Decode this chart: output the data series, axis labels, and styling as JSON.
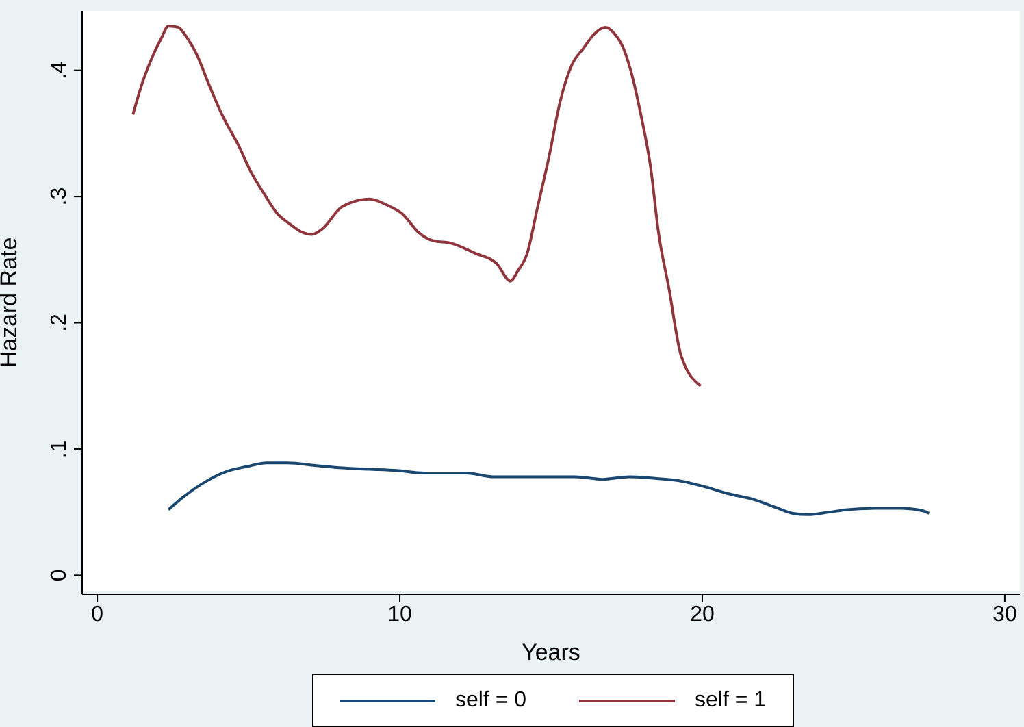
{
  "chart_data": {
    "type": "line",
    "xlabel": "Years",
    "ylabel": "Hazard Rate",
    "xlim": [
      -0.5,
      30.5
    ],
    "ylim": [
      -0.015,
      0.447
    ],
    "xticks": [
      0,
      10,
      20,
      30
    ],
    "yticks": [
      {
        "value": 0,
        "label": "0"
      },
      {
        "value": 0.1,
        "label": ".1"
      },
      {
        "value": 0.2,
        "label": ".2"
      },
      {
        "value": 0.3,
        "label": ".3"
      },
      {
        "value": 0.4,
        "label": ".4"
      }
    ],
    "grid": false,
    "legend": "bottom",
    "marker": "none",
    "line_style": "solid",
    "series": [
      {
        "name": "self = 0",
        "color": "#1a476f",
        "x": [
          2.35,
          2.9,
          3.57,
          4.25,
          4.93,
          5.6,
          6.3,
          7.2,
          8.1,
          9.0,
          9.9,
          10.8,
          12.2,
          13.1,
          14.0,
          14.9,
          15.8,
          16.7,
          17.6,
          18.3,
          19.2,
          20.1,
          20.8,
          21.7,
          22.4,
          23.0,
          23.5,
          24.2,
          24.8,
          25.7,
          26.6,
          27.3,
          27.5
        ],
        "values": [
          0.052,
          0.063,
          0.074,
          0.082,
          0.086,
          0.089,
          0.089,
          0.087,
          0.085,
          0.084,
          0.083,
          0.081,
          0.081,
          0.078,
          0.078,
          0.078,
          0.078,
          0.076,
          0.078,
          0.077,
          0.075,
          0.07,
          0.065,
          0.06,
          0.054,
          0.049,
          0.048,
          0.05,
          0.052,
          0.053,
          0.053,
          0.051,
          0.049
        ]
      },
      {
        "name": "self = 1",
        "color": "#90353b",
        "x": [
          1.18,
          1.49,
          1.81,
          2.13,
          2.35,
          2.67,
          2.99,
          3.3,
          3.67,
          4.12,
          4.7,
          5.07,
          5.52,
          5.97,
          6.38,
          6.74,
          7.1,
          7.42,
          8.1,
          9.0,
          9.6,
          10.1,
          10.6,
          11.1,
          11.7,
          12.5,
          13.2,
          13.66,
          13.9,
          14.2,
          14.56,
          14.93,
          15.3,
          15.7,
          16.06,
          16.4,
          16.8,
          17.06,
          17.4,
          17.7,
          17.96,
          18.3,
          18.55,
          18.9,
          19.3,
          19.95
        ],
        "values": [
          0.365,
          0.39,
          0.41,
          0.426,
          0.435,
          0.434,
          0.425,
          0.412,
          0.39,
          0.365,
          0.339,
          0.32,
          0.302,
          0.286,
          0.278,
          0.272,
          0.27,
          0.274,
          0.292,
          0.298,
          0.293,
          0.286,
          0.272,
          0.265,
          0.263,
          0.255,
          0.247,
          0.233,
          0.241,
          0.254,
          0.292,
          0.331,
          0.375,
          0.405,
          0.417,
          0.428,
          0.434,
          0.43,
          0.417,
          0.394,
          0.366,
          0.322,
          0.272,
          0.227,
          0.174,
          0.15
        ]
      }
    ]
  }
}
